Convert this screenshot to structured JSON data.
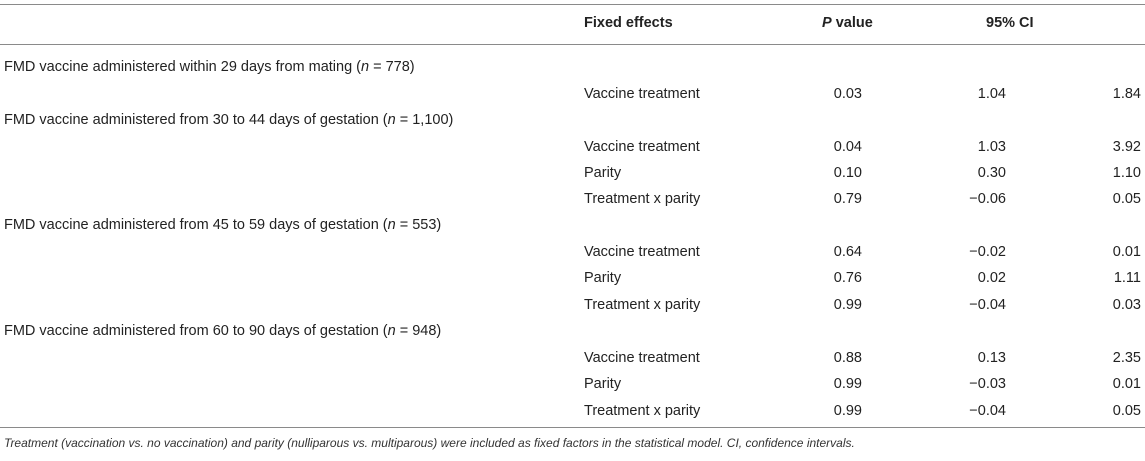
{
  "header": {
    "fixed_effects": "Fixed effects",
    "p_value_italic": "P",
    "p_value_rest": " value",
    "ci": "95% CI"
  },
  "groups": [
    {
      "label_pre": "FMD vaccine administered within 29 days from mating (",
      "label_n": "n",
      "label_post": " = 778)",
      "rows": [
        {
          "effect": "Vaccine treatment",
          "p": "0.03",
          "ci_low": "1.04",
          "ci_high": "1.84"
        }
      ]
    },
    {
      "label_pre": "FMD vaccine administered from 30 to 44 days of gestation (",
      "label_n": "n",
      "label_post": " = 1,100)",
      "rows": [
        {
          "effect": "Vaccine treatment",
          "p": "0.04",
          "ci_low": "1.03",
          "ci_high": "3.92"
        },
        {
          "effect": "Parity",
          "p": "0.10",
          "ci_low": "0.30",
          "ci_high": "1.10"
        },
        {
          "effect": "Treatment x parity",
          "p": "0.79",
          "ci_low": "−0.06",
          "ci_high": "0.05"
        }
      ]
    },
    {
      "label_pre": "FMD vaccine administered from 45 to 59 days of gestation (",
      "label_n": "n",
      "label_post": " = 553)",
      "rows": [
        {
          "effect": "Vaccine treatment",
          "p": "0.64",
          "ci_low": "−0.02",
          "ci_high": "0.01"
        },
        {
          "effect": "Parity",
          "p": "0.76",
          "ci_low": "0.02",
          "ci_high": "1.11"
        },
        {
          "effect": "Treatment x parity",
          "p": "0.99",
          "ci_low": "−0.04",
          "ci_high": "0.03"
        }
      ]
    },
    {
      "label_pre": "FMD vaccine administered from 60 to 90 days of gestation (",
      "label_n": "n",
      "label_post": " = 948)",
      "rows": [
        {
          "effect": "Vaccine treatment",
          "p": "0.88",
          "ci_low": "0.13",
          "ci_high": "2.35"
        },
        {
          "effect": "Parity",
          "p": "0.99",
          "ci_low": "−0.03",
          "ci_high": "0.01"
        },
        {
          "effect": "Treatment x parity",
          "p": "0.99",
          "ci_low": "−0.04",
          "ci_high": "0.05"
        }
      ]
    }
  ],
  "footnote": "Treatment (vaccination vs. no vaccination) and parity (nulliparous vs. multiparous) were included as fixed factors in the statistical model. CI, confidence intervals."
}
